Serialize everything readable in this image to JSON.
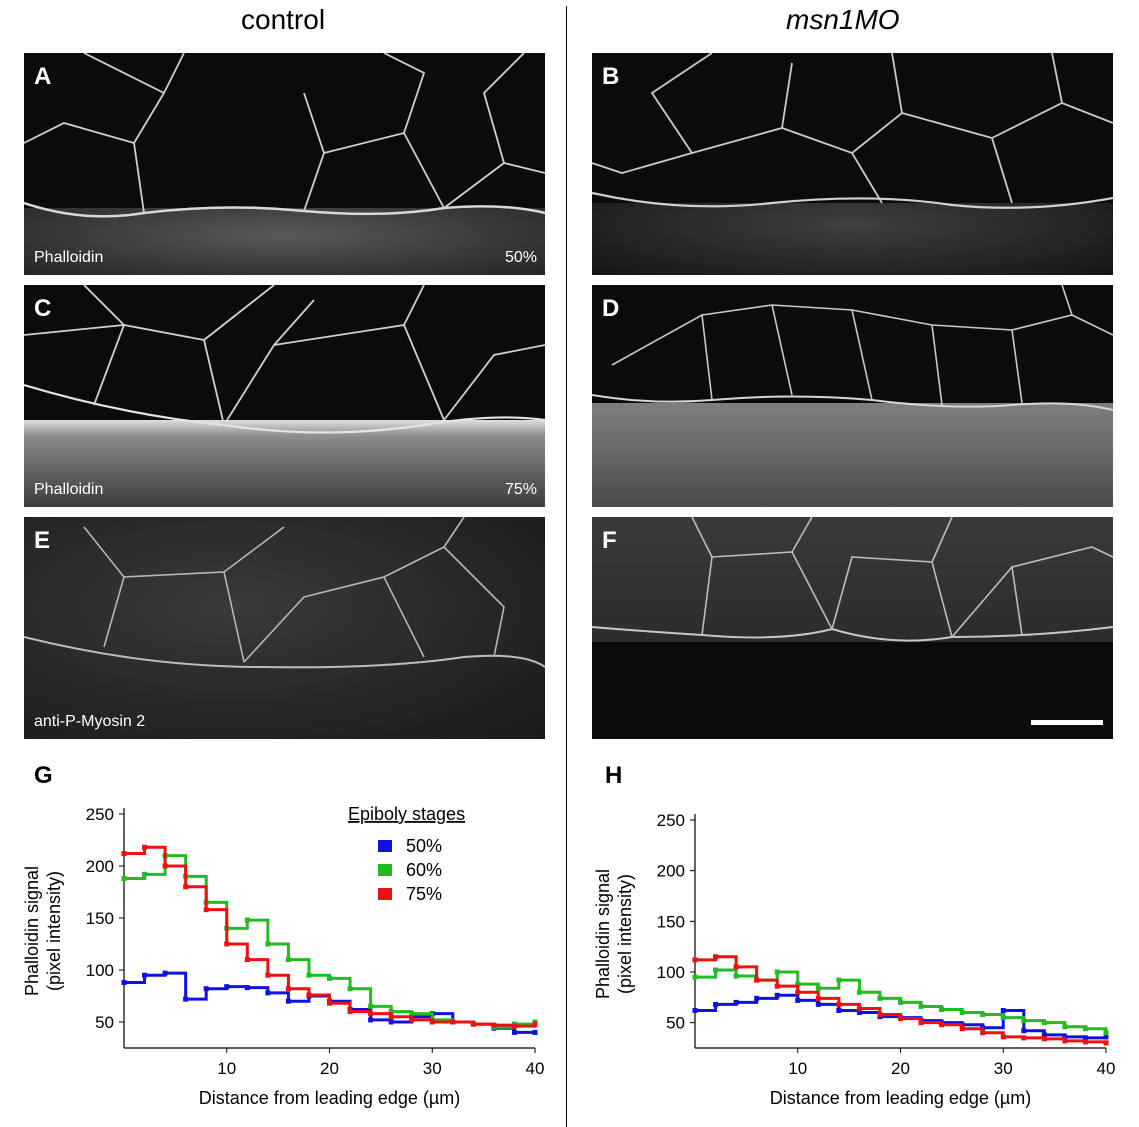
{
  "columns": {
    "left_title": "control",
    "right_title": "msn1MO"
  },
  "panels": {
    "A": {
      "letter": "A",
      "stain": "Phalloidin",
      "stage": "50%"
    },
    "B": {
      "letter": "B"
    },
    "C": {
      "letter": "C",
      "stain": "Phalloidin",
      "stage": "75%"
    },
    "D": {
      "letter": "D"
    },
    "E": {
      "letter": "E",
      "stain": "anti-P-Myosin 2"
    },
    "F": {
      "letter": "F"
    }
  },
  "colors": {
    "50%": "#1010e0",
    "60%": "#22bb22",
    "75%": "#ee1111"
  },
  "chart_data": [
    {
      "panel": "G",
      "type": "line",
      "title": "",
      "xlabel": "Distance from leading edge (µm)",
      "ylabel": "Phalloidin signal (pixel intensity)",
      "ylabel_lines": [
        "Phalloidin signal",
        "(pixel intensity)"
      ],
      "xlim": [
        0,
        40
      ],
      "ylim": [
        25,
        250
      ],
      "xticks": [
        10,
        20,
        30,
        40
      ],
      "yticks": [
        50,
        100,
        150,
        200,
        250
      ],
      "legend_title": "Epiboly stages",
      "legend_position": "top-right",
      "x": [
        0,
        2,
        4,
        6,
        8,
        10,
        12,
        14,
        16,
        18,
        20,
        22,
        24,
        26,
        28,
        30,
        32,
        34,
        36,
        38,
        40
      ],
      "series": [
        {
          "name": "50%",
          "color": "#1010e0",
          "values": [
            88,
            95,
            97,
            72,
            82,
            84,
            83,
            78,
            70,
            75,
            70,
            62,
            52,
            50,
            55,
            58,
            50,
            48,
            44,
            40,
            40
          ]
        },
        {
          "name": "60%",
          "color": "#22bb22",
          "values": [
            188,
            192,
            210,
            190,
            165,
            140,
            148,
            125,
            110,
            95,
            92,
            82,
            65,
            60,
            58,
            52,
            50,
            48,
            45,
            48,
            50
          ]
        },
        {
          "name": "75%",
          "color": "#ee1111",
          "values": [
            212,
            218,
            200,
            180,
            158,
            125,
            110,
            95,
            82,
            76,
            68,
            60,
            58,
            55,
            52,
            50,
            50,
            48,
            47,
            46,
            48
          ]
        }
      ]
    },
    {
      "panel": "H",
      "type": "line",
      "title": "",
      "xlabel": "Distance from leading edge (µm)",
      "ylabel": "Phalloidin signal (pixel intensity)",
      "ylabel_lines": [
        "Phalloidin signal",
        "(pixel intensity)"
      ],
      "xlim": [
        0,
        40
      ],
      "ylim": [
        25,
        250
      ],
      "xticks": [
        10,
        20,
        30,
        40
      ],
      "yticks": [
        50,
        100,
        150,
        200,
        250
      ],
      "x": [
        0,
        2,
        4,
        6,
        8,
        10,
        12,
        14,
        16,
        18,
        20,
        22,
        24,
        26,
        28,
        30,
        32,
        34,
        36,
        38,
        40
      ],
      "series": [
        {
          "name": "50%",
          "color": "#1010e0",
          "values": [
            62,
            68,
            70,
            74,
            77,
            72,
            68,
            62,
            60,
            56,
            55,
            52,
            50,
            48,
            45,
            62,
            42,
            38,
            36,
            35,
            36
          ]
        },
        {
          "name": "60%",
          "color": "#22bb22",
          "values": [
            95,
            102,
            96,
            92,
            100,
            88,
            84,
            92,
            80,
            74,
            70,
            66,
            63,
            60,
            58,
            55,
            52,
            50,
            46,
            44,
            40
          ]
        },
        {
          "name": "75%",
          "color": "#ee1111",
          "values": [
            112,
            115,
            105,
            92,
            86,
            80,
            74,
            68,
            64,
            58,
            54,
            50,
            48,
            44,
            40,
            36,
            35,
            34,
            32,
            31,
            30
          ]
        }
      ]
    }
  ]
}
